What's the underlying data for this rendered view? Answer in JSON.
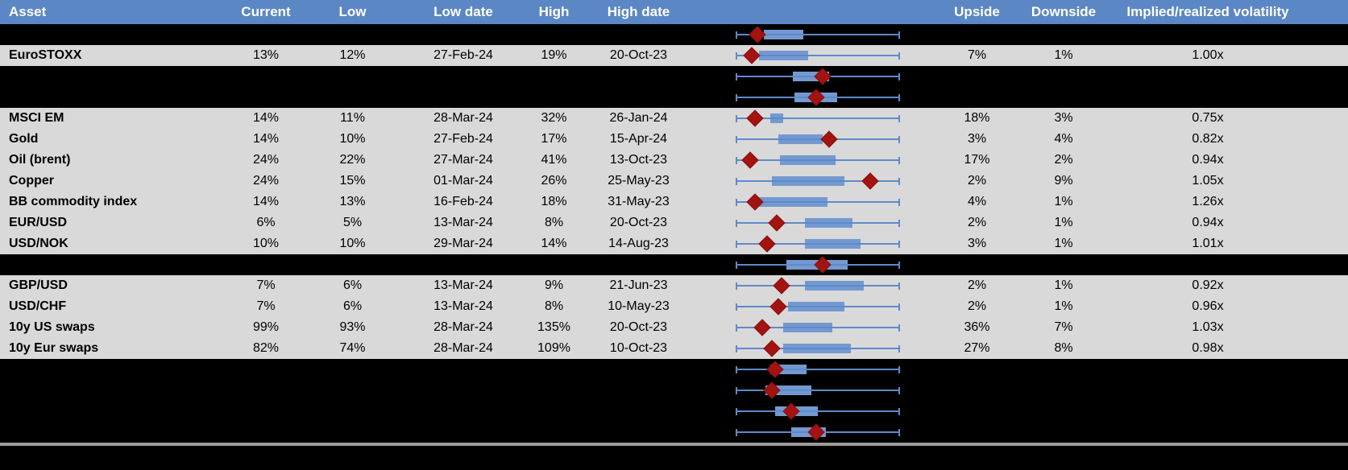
{
  "colors": {
    "header_bg": "#5B87C5",
    "header_text": "#FFFFFF",
    "row_bg": "#D9D9D9",
    "hidden_row_bg": "#000000",
    "box_fill": "#7399D1",
    "whisker_line": "#5E8AC8",
    "diamond_marker": "#A31310",
    "divider": "#9B9B9B"
  },
  "table": {
    "columns": {
      "asset": "Asset",
      "current": "Current",
      "low": "Low",
      "low_date": "Low date",
      "high": "High",
      "high_date": "High date",
      "chart": "",
      "upside": "Upside",
      "downside": "Downside",
      "implied_realized": "Implied/realized volatility"
    },
    "rows": [
      {
        "type": "hidden",
        "boxplot": {
          "box_lo": 17,
          "box_hi": 41,
          "diamond": 13
        }
      },
      {
        "type": "data",
        "asset": "EuroSTOXX",
        "current": "13%",
        "low": "12%",
        "low_date": "27-Feb-24",
        "high": "19%",
        "high_date": "20-Oct-23",
        "upside": "7%",
        "downside": "1%",
        "implied_realized": "1.00x",
        "boxplot": {
          "box_lo": 14,
          "box_hi": 44,
          "diamond": 10
        }
      },
      {
        "type": "hidden",
        "boxplot": {
          "box_lo": 35,
          "box_hi": 57,
          "diamond": 53
        }
      },
      {
        "type": "hidden",
        "boxplot": {
          "box_lo": 36,
          "box_hi": 62,
          "diamond": 49
        }
      },
      {
        "type": "data",
        "asset": "MSCI EM",
        "current": "14%",
        "low": "11%",
        "low_date": "28-Mar-24",
        "high": "32%",
        "high_date": "26-Jan-24",
        "upside": "18%",
        "downside": "3%",
        "implied_realized": "0.75x",
        "boxplot": {
          "box_lo": 21,
          "box_hi": 29,
          "diamond": 12
        }
      },
      {
        "type": "data",
        "asset": "Gold",
        "current": "14%",
        "low": "10%",
        "low_date": "27-Feb-24",
        "high": "17%",
        "high_date": "15-Apr-24",
        "upside": "3%",
        "downside": "4%",
        "implied_realized": "0.82x",
        "boxplot": {
          "box_lo": 26,
          "box_hi": 53,
          "diamond": 57
        }
      },
      {
        "type": "data",
        "asset": "Oil (brent)",
        "current": "24%",
        "low": "22%",
        "low_date": "27-Mar-24",
        "high": "41%",
        "high_date": "13-Oct-23",
        "upside": "17%",
        "downside": "2%",
        "implied_realized": "0.94x",
        "boxplot": {
          "box_lo": 27,
          "box_hi": 61,
          "diamond": 9
        }
      },
      {
        "type": "data",
        "asset": "Copper",
        "current": "24%",
        "low": "15%",
        "low_date": "01-Mar-24",
        "high": "26%",
        "high_date": "25-May-23",
        "upside": "2%",
        "downside": "9%",
        "implied_realized": "1.05x",
        "boxplot": {
          "box_lo": 22,
          "box_hi": 66,
          "diamond": 82
        }
      },
      {
        "type": "data",
        "asset": "BB commodity index",
        "current": "14%",
        "low": "13%",
        "low_date": "16-Feb-24",
        "high": "18%",
        "high_date": "31-May-23",
        "upside": "4%",
        "downside": "1%",
        "implied_realized": "1.26x",
        "boxplot": {
          "box_lo": 13,
          "box_hi": 56,
          "diamond": 12
        }
      },
      {
        "type": "data",
        "asset": "EUR/USD",
        "current": "6%",
        "low": "5%",
        "low_date": "13-Mar-24",
        "high": "8%",
        "high_date": "20-Oct-23",
        "upside": "2%",
        "downside": "1%",
        "implied_realized": "0.94x",
        "boxplot": {
          "box_lo": 42,
          "box_hi": 71,
          "diamond": 25
        }
      },
      {
        "type": "data",
        "asset": "USD/NOK",
        "current": "10%",
        "low": "10%",
        "low_date": "29-Mar-24",
        "high": "14%",
        "high_date": "14-Aug-23",
        "upside": "3%",
        "downside": "1%",
        "implied_realized": "1.01x",
        "boxplot": {
          "box_lo": 42,
          "box_hi": 76,
          "diamond": 19
        }
      },
      {
        "type": "hidden",
        "boxplot": {
          "box_lo": 31,
          "box_hi": 68,
          "diamond": 53
        }
      },
      {
        "type": "data",
        "asset": "GBP/USD",
        "current": "7%",
        "low": "6%",
        "low_date": "13-Mar-24",
        "high": "9%",
        "high_date": "21-Jun-23",
        "upside": "2%",
        "downside": "1%",
        "implied_realized": "0.92x",
        "boxplot": {
          "box_lo": 42,
          "box_hi": 78,
          "diamond": 28
        }
      },
      {
        "type": "data",
        "asset": "USD/CHF",
        "current": "7%",
        "low": "6%",
        "low_date": "13-Mar-24",
        "high": "8%",
        "high_date": "10-May-23",
        "upside": "2%",
        "downside": "1%",
        "implied_realized": "0.96x",
        "boxplot": {
          "box_lo": 32,
          "box_hi": 66,
          "diamond": 26
        }
      },
      {
        "type": "data",
        "asset": "10y US swaps",
        "current": "99%",
        "low": "93%",
        "low_date": "28-Mar-24",
        "high": "135%",
        "high_date": "20-Oct-23",
        "upside": "36%",
        "downside": "7%",
        "implied_realized": "1.03x",
        "boxplot": {
          "box_lo": 29,
          "box_hi": 59,
          "diamond": 16
        }
      },
      {
        "type": "data",
        "asset": "10y Eur swaps",
        "current": "82%",
        "low": "74%",
        "low_date": "28-Mar-24",
        "high": "109%",
        "high_date": "10-Oct-23",
        "upside": "27%",
        "downside": "8%",
        "implied_realized": "0.98x",
        "boxplot": {
          "box_lo": 29,
          "box_hi": 70,
          "diamond": 22
        }
      },
      {
        "type": "hidden",
        "boxplot": {
          "box_lo": 21,
          "box_hi": 43,
          "diamond": 24
        }
      },
      {
        "type": "hidden",
        "boxplot": {
          "box_lo": 18,
          "box_hi": 46,
          "diamond": 22
        }
      },
      {
        "type": "hidden",
        "boxplot": {
          "box_lo": 24,
          "box_hi": 50,
          "diamond": 34
        }
      },
      {
        "type": "hidden",
        "boxplot": {
          "box_lo": 34,
          "box_hi": 55,
          "diamond": 49
        }
      }
    ]
  }
}
